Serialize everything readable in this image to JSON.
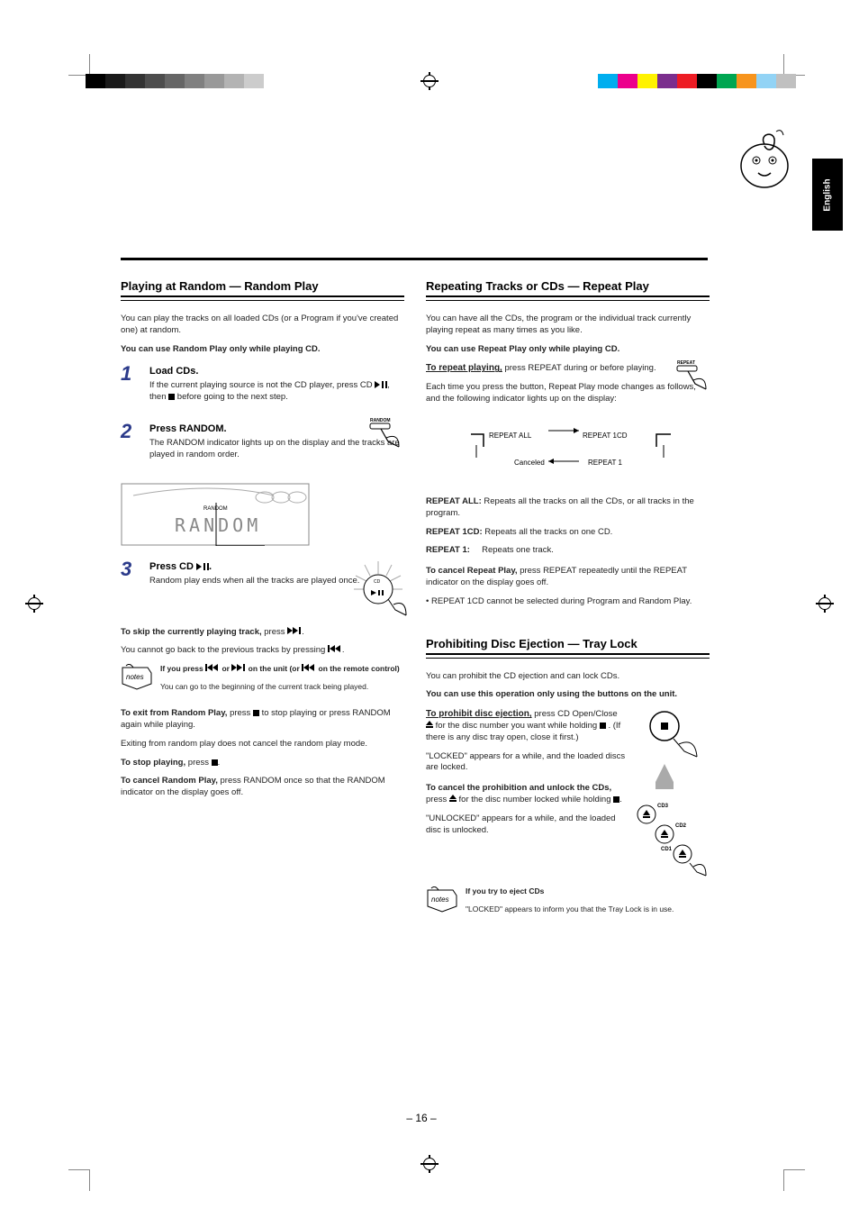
{
  "page_number": "– 16 –",
  "lang_tab": "English",
  "left": {
    "heading": "Playing at Random — Random Play",
    "intro1": "You can play the tracks on all loaded CDs (or a Program if you've created one) at random.",
    "intro2": "You can use Random Play only while playing CD.",
    "step1_head": "Load CDs.",
    "step1_body": "If the current playing source is not the CD player, press CD ▶/II, then ■ before going to the next step.",
    "step2_head": "Press RANDOM.",
    "step2_body": "The RANDOM indicator lights up on the display and the tracks are played in random order.",
    "random_label": "RANDOM",
    "display_word": "RANDOM",
    "step3_head": "Press CD ▶/II.",
    "step3_body": "Random play ends when all the tracks are played once.",
    "skip_head": "To skip the currently playing track,",
    "skip_body": " press ▶▶|.",
    "skip_note": "You cannot go back to the previous tracks by pressing |◀◀.",
    "notes_head": "If you press |◀◀ or ▶▶| on the unit (or |◀◀ on the remote control)",
    "notes_body": "You can go to the beginning of the current track being played.",
    "exit_head": "To exit from Random Play,",
    "exit_body": " press ■ to stop playing or press RANDOM again while playing.",
    "exit_note": "Exiting from random play does not cancel the random play mode.",
    "stop_head": "To stop playing,",
    "stop_body": " press ■.",
    "cancel_head": "To cancel Random Play,",
    "cancel_body": " press RANDOM once so that the RANDOM indicator on the display goes off."
  },
  "right": {
    "heading": "Repeating Tracks or CDs — Repeat Play",
    "intro1": "You can have all the CDs, the program or the individual track currently playing repeat as many times as you like.",
    "intro2": "You can use Repeat Play only while playing CD.",
    "repeat_head": "To repeat playing,",
    "repeat_body": " press REPEAT during or before playing.",
    "repeat_after": "Each time you press the button, Repeat Play mode changes as follows, and the following indicator lights up on the display:",
    "repeat_label": "REPEAT",
    "cycle_a": "REPEAT ALL",
    "cycle_b": "REPEAT 1CD",
    "cycle_c": "REPEAT 1",
    "cycle_d": "Canceled",
    "li1": "REPEAT ALL: Repeats all the tracks on all the CDs, or all tracks in the program.",
    "li2": "REPEAT 1CD: Repeats all the tracks on one CD.",
    "li3": "REPEAT 1:     Repeats one track.",
    "cancel_head": "To cancel Repeat Play,",
    "cancel_body": " press REPEAT repeatedly until the REPEAT indicator on the display goes off.",
    "note_line": "• REPEAT 1CD cannot be selected during Program and Random Play.",
    "tray_heading": "Prohibiting Disc Ejection — Tray Lock",
    "tray_intro1": "You can prohibit the CD ejection and can lock CDs.",
    "tray_intro2": "You can use this operation only using the buttons on the unit.",
    "tray_lock_head": "To prohibit disc ejection,",
    "tray_lock_body": " press CD Open/Close ▲ for the disc number you want while holding ■. (If there is any disc tray open, close it first.)",
    "tray_lock_after": "\"LOCKED\" appears for a while, and the loaded discs are locked.",
    "tray_unlock_head": "To cancel the prohibition and unlock the CDs,",
    "tray_unlock_body": " press ▲ for the disc number locked while holding ■.",
    "tray_unlock_after": "\"UNLOCKED\" appears for a while, and the loaded disc is unlocked.",
    "tray_notes_head": "If you try to eject CDs",
    "tray_notes_body": "\"LOCKED\" appears to inform you that the Tray Lock is in use.",
    "cd_labels": [
      "CD3",
      "CD2",
      "CD1"
    ]
  },
  "colors": {
    "accent": "#2b3a8a",
    "gray_steps": [
      "#000000",
      "#1a1a1a",
      "#333333",
      "#4d4d4d",
      "#666666",
      "#808080",
      "#999999",
      "#b3b3b3",
      "#cccccc",
      "#ffffff"
    ],
    "color_bar": [
      "#00aeef",
      "#ec008c",
      "#fff200",
      "#7b2e8d",
      "#ed1c24",
      "#000000",
      "#00a651",
      "#f7941d",
      "#92d3f5",
      "#c0c0c0"
    ]
  }
}
